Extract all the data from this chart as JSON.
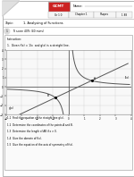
{
  "title_logo": "GCMT",
  "name_label": "Name:",
  "table_headers": [
    "Gr 1 0",
    "Chapter 1",
    "Shapes",
    "1 88"
  ],
  "topic_label": "Topic:",
  "topic_value": "1. Analysing of Functions",
  "instruction": "To score 40% (40 mins)",
  "question_number": "1.",
  "question_text": "Given f(x) = 1/x  and g(x) is a straight line.",
  "subquestions": [
    "1.1  Find the equation of the straight line g(x).",
    "1.2  Determine the coordinates of the points A and B.",
    "1.3  Determine the length of AB if x > 0.",
    "1.4  Give the domain of f(x).",
    "1.5  Give the equation of the axis of symmetry of f(x)."
  ],
  "graph_xlim": [
    -4,
    4
  ],
  "graph_ylim": [
    -3,
    4
  ],
  "bg_color": "#ffffff",
  "grid_color": "#cccccc",
  "axis_color": "#444444",
  "curve_color": "#555555",
  "line_color": "#555555",
  "label_gx": "g(x)",
  "label_fx": "f(x)",
  "logo_bg": "#cc2222",
  "border_color": "#999999"
}
